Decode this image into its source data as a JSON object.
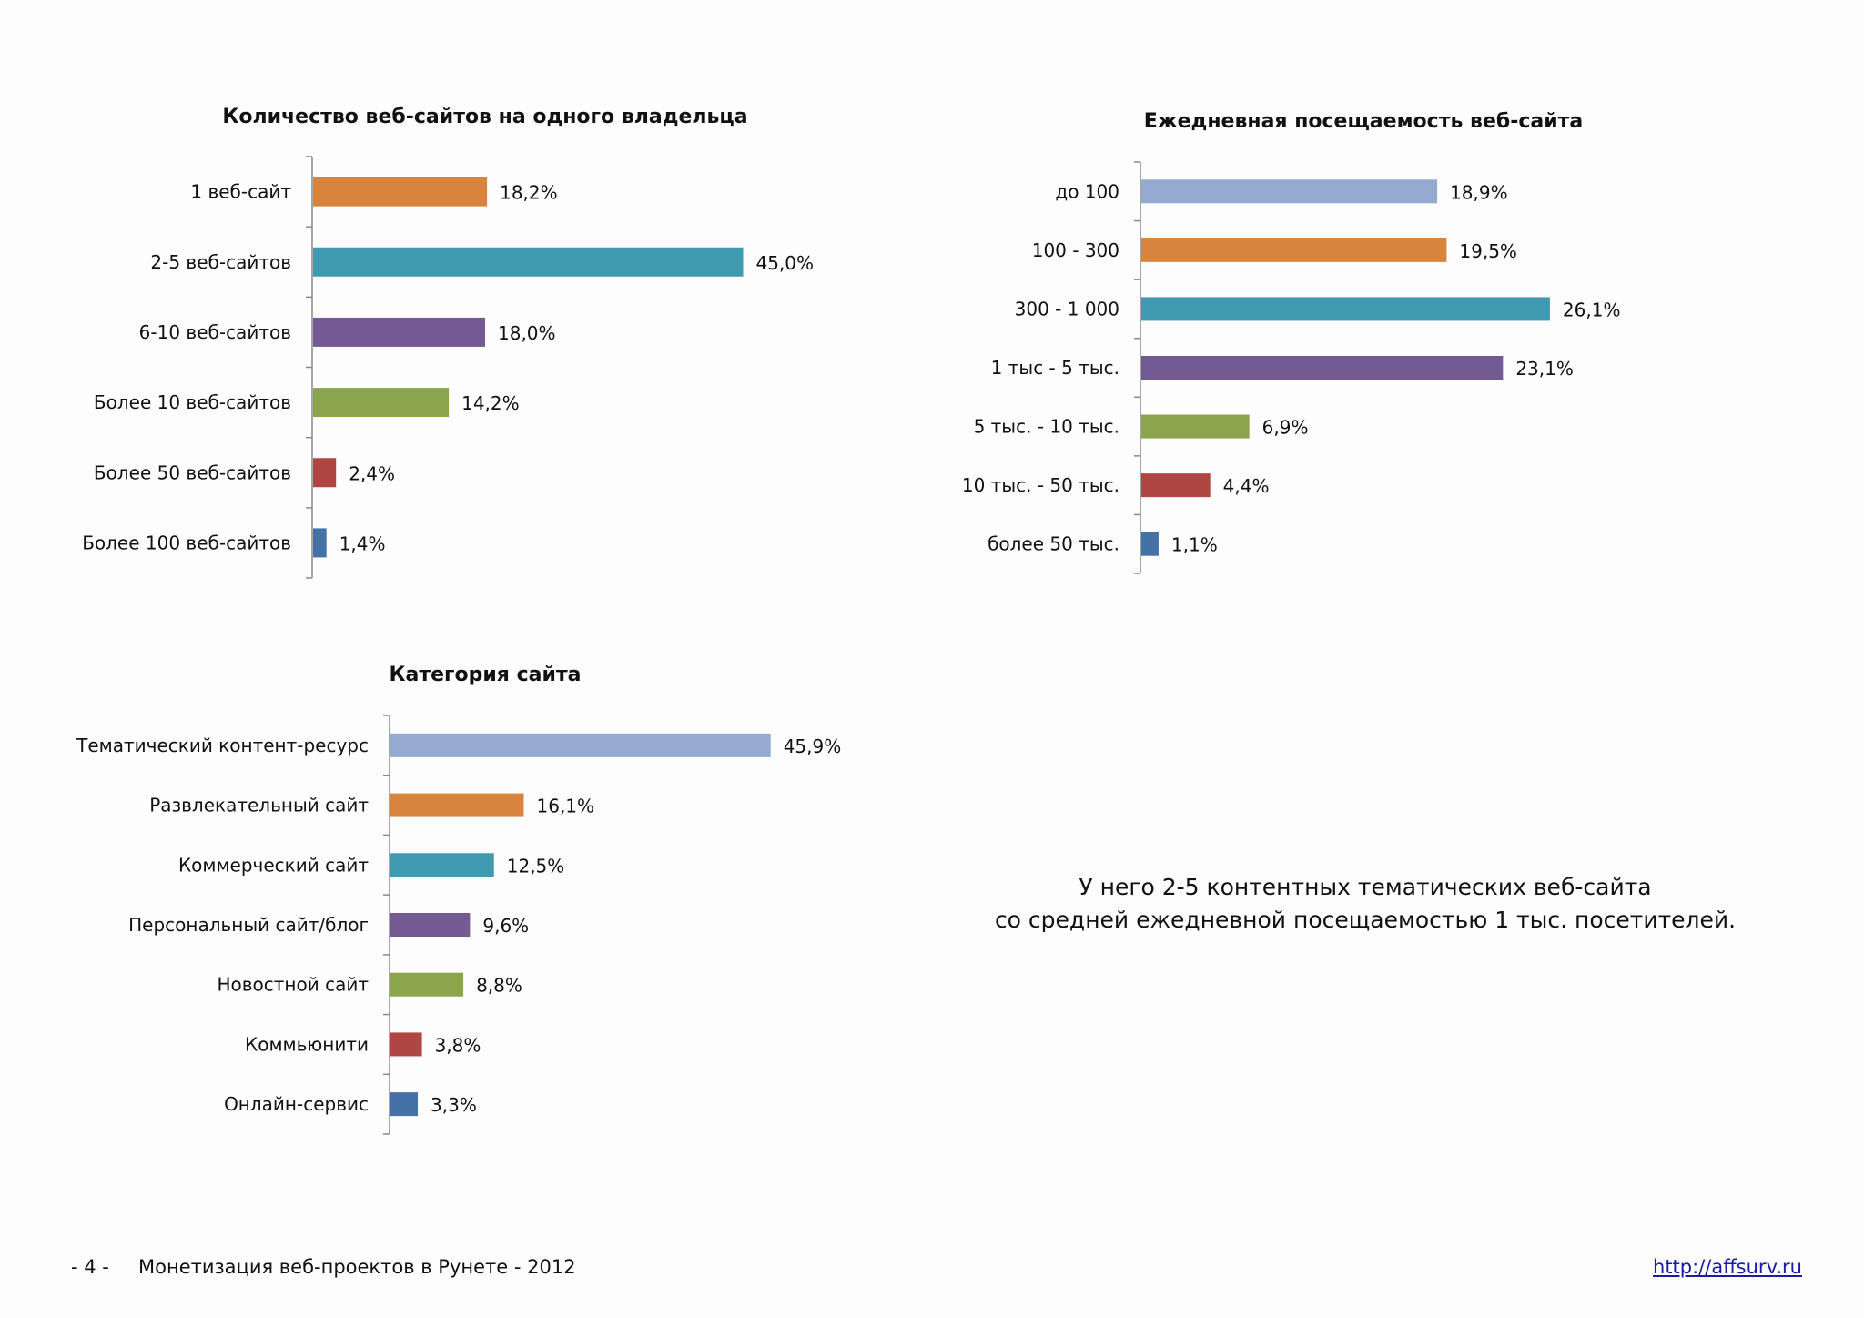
{
  "chart_data": [
    {
      "type": "bar",
      "orientation": "horizontal",
      "title": "Количество веб-сайтов на одного владельца",
      "categories": [
        "1 веб-сайт",
        "2-5 веб-сайтов",
        "6-10 веб-сайтов",
        "Более 10 веб-сайтов",
        "Более 50 веб-сайтов",
        "Более 100 веб-сайтов"
      ],
      "values": [
        18.2,
        45.0,
        18.0,
        14.2,
        2.4,
        1.4
      ],
      "value_labels": [
        "18,2%",
        "45,0%",
        "18,0%",
        "14,2%",
        "2,4%",
        "1,4%"
      ],
      "colors": [
        "#d9843c",
        "#3f9ab1",
        "#735a93",
        "#8aa54b",
        "#b04643",
        "#4471a6"
      ],
      "unit": "%"
    },
    {
      "type": "bar",
      "orientation": "horizontal",
      "title": "Ежедневная посещаемость веб-сайта",
      "categories": [
        "до 100",
        "100 - 300",
        "300 - 1 000",
        "1 тыс - 5 тыс.",
        "5 тыс. - 10 тыс.",
        "10 тыс. - 50 тыс.",
        "более 50 тыс."
      ],
      "values": [
        18.9,
        19.5,
        26.1,
        23.1,
        6.9,
        4.4,
        1.1
      ],
      "value_labels": [
        "18,9%",
        "19,5%",
        "26,1%",
        "23,1%",
        "6,9%",
        "4,4%",
        "1,1%"
      ],
      "colors": [
        "#95a9d1",
        "#d9843c",
        "#3f9ab1",
        "#735a93",
        "#8aa54b",
        "#b04643",
        "#4471a6"
      ],
      "unit": "%"
    },
    {
      "type": "bar",
      "orientation": "horizontal",
      "title": "Категория сайта",
      "categories": [
        "Тематический контент-ресурс",
        "Развлекательный сайт",
        "Коммерческий сайт",
        "Персональный сайт/блог",
        "Новостной сайт",
        "Коммьюнити",
        "Онлайн-сервис"
      ],
      "values": [
        45.9,
        16.1,
        12.5,
        9.6,
        8.8,
        3.8,
        3.3
      ],
      "value_labels": [
        "45,9%",
        "16,1%",
        "12,5%",
        "9,6%",
        "8,8%",
        "3,8%",
        "3,3%"
      ],
      "colors": [
        "#95a9d1",
        "#d9843c",
        "#3f9ab1",
        "#735a93",
        "#8aa54b",
        "#b04643",
        "#4471a6"
      ],
      "unit": "%"
    }
  ],
  "summary": {
    "line1": "У него 2-5 контентных тематических веб-сайта",
    "line2": "со средней ежедневной посещаемостью  1 тыс. посетителей."
  },
  "footer": {
    "page": "- 4 -",
    "title": "Монетизация веб-проектов в Рунете - 2012",
    "link": "http://affsurv.ru"
  }
}
